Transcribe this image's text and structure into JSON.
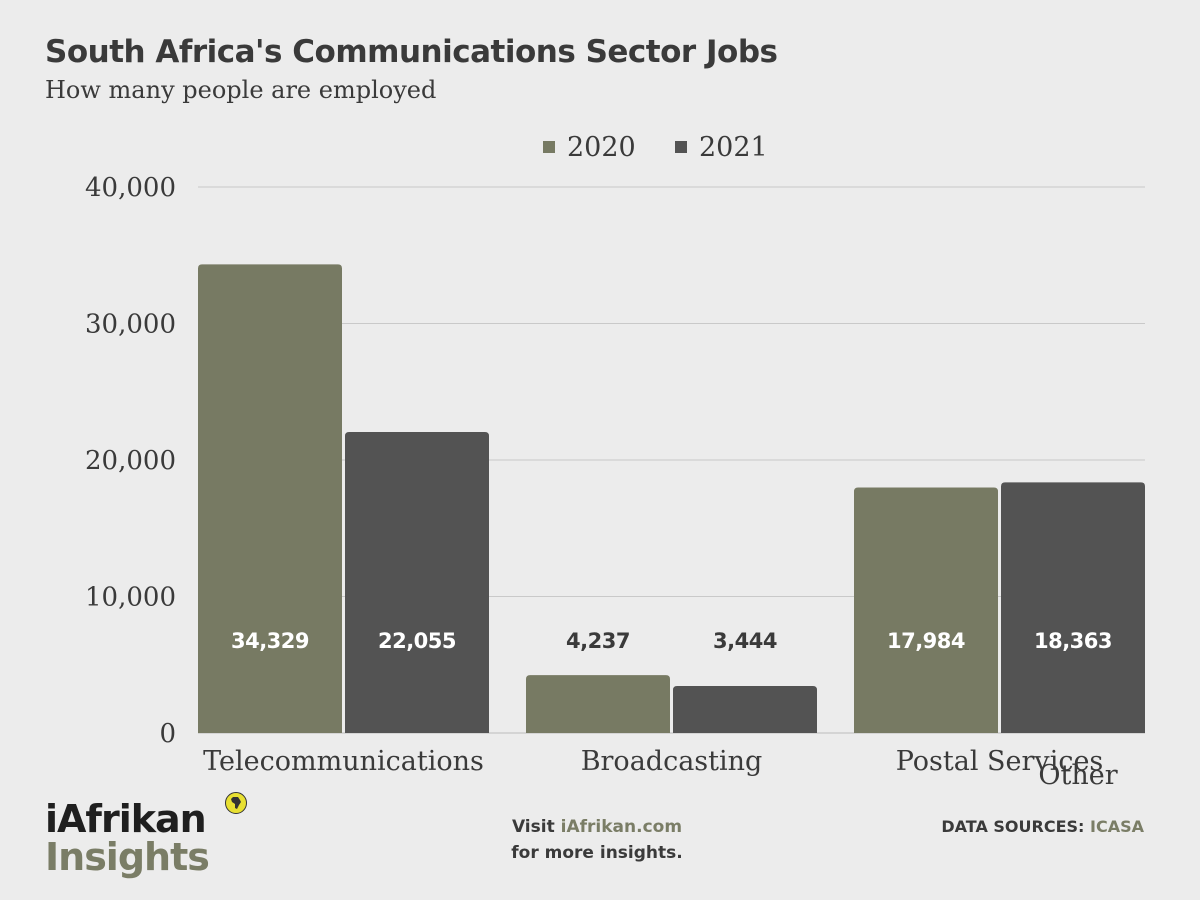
{
  "header": {
    "title": "South Africa's Communications Sector Jobs",
    "subtitle": "How many people are employed"
  },
  "chart_data": {
    "type": "bar",
    "title": "South Africa's Communications Sector Jobs",
    "subtitle": "How many people are employed",
    "categories": [
      "Telecommunications",
      "Broadcasting",
      "Postal Services"
    ],
    "series": [
      {
        "name": "2020",
        "values": [
          34329,
          4237,
          17984
        ],
        "labels": [
          "34,329",
          "4,237",
          "17,984"
        ],
        "color": "#777a63"
      },
      {
        "name": "2021",
        "values": [
          22055,
          3444,
          18363
        ],
        "labels": [
          "22,055",
          "3,444",
          "18,363"
        ],
        "color": "#535353"
      }
    ],
    "ylim": [
      0,
      40000
    ],
    "yticks": [
      0,
      10000,
      20000,
      30000,
      40000
    ],
    "ytick_labels": [
      "0",
      "10,000",
      "20,000",
      "30,000",
      "40,000"
    ],
    "xlabel": "",
    "ylabel": "",
    "extra_label": "Other",
    "legend_position": "top-center",
    "grid": true
  },
  "footer": {
    "logo_top": "iAfrikan",
    "logo_bottom": "Insights",
    "visit_prefix": "Visit ",
    "visit_link": "iAfrikan.com",
    "visit_suffix": "for more insights.",
    "sources_label": "DATA SOURCES: ",
    "sources_value": "ICASA"
  },
  "colors": {
    "accent": "#777a63",
    "dark": "#535353",
    "background": "#ececec",
    "label_on_bar": "#ffffff",
    "label_off_bar": "#3a3a3a"
  }
}
